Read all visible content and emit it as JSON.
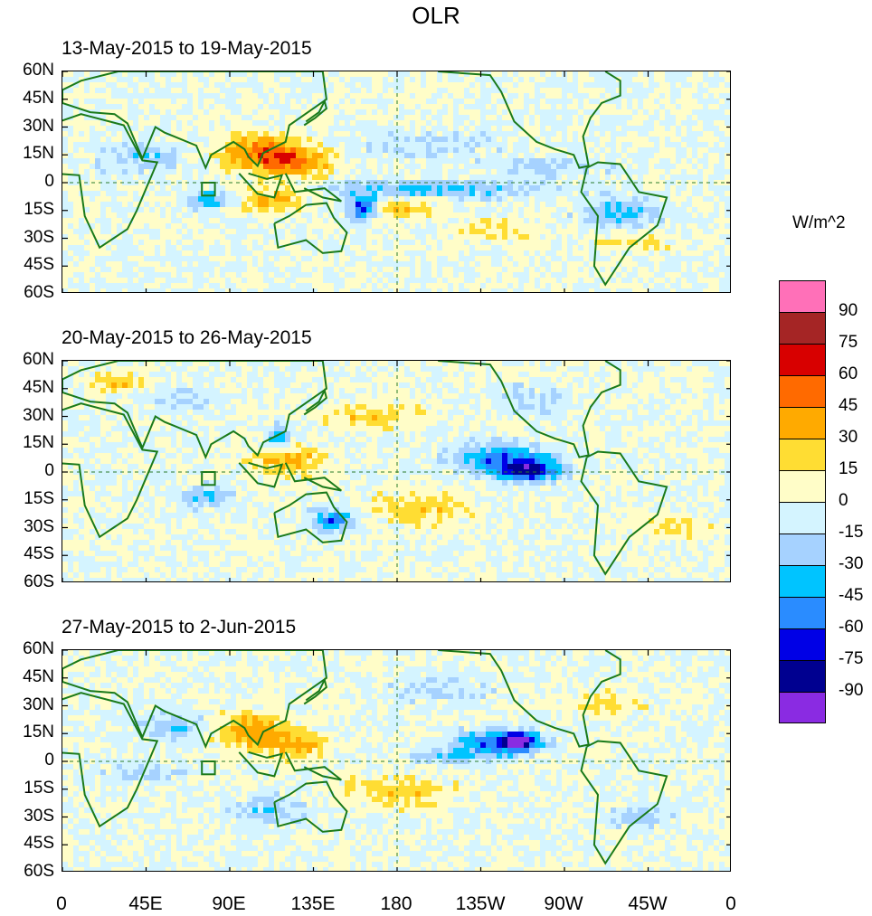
{
  "title": "OLR",
  "panels": [
    {
      "period": "13-May-2015 to 19-May-2015"
    },
    {
      "period": "20-May-2015 to 26-May-2015"
    },
    {
      "period": "27-May-2015 to 2-Jun-2015"
    }
  ],
  "lat_labels": [
    "60N",
    "45N",
    "30N",
    "15N",
    "0",
    "15S",
    "30S",
    "45S",
    "60S"
  ],
  "lon_labels": [
    "0",
    "45E",
    "90E",
    "135E",
    "180",
    "135W",
    "90W",
    "45W",
    "0"
  ],
  "colorbar": {
    "units": "W/m^2",
    "levels": [
      "90",
      "75",
      "60",
      "45",
      "30",
      "15",
      "0",
      "-15",
      "-30",
      "-45",
      "-60",
      "-75",
      "-90"
    ],
    "colors": [
      "#ff70b8",
      "#a52525",
      "#d80000",
      "#ff6a00",
      "#ffaa00",
      "#ffdd33",
      "#fffdc8",
      "#d4f4ff",
      "#a6d2ff",
      "#00c4ff",
      "#2a8cff",
      "#0000e6",
      "#000090",
      "#8a2be2"
    ]
  }
}
